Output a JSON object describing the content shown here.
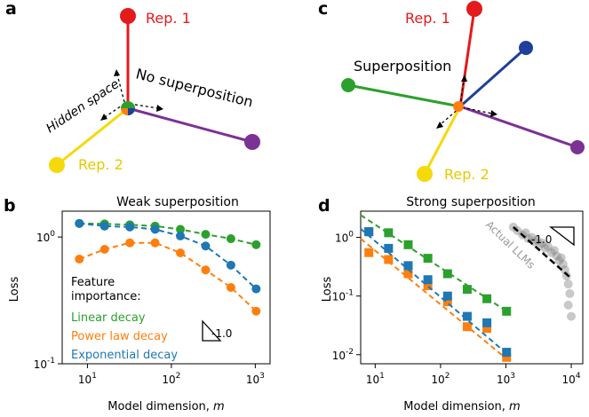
{
  "panels": {
    "a": {
      "letter": "a",
      "rep1": "Rep. 1",
      "rep2": "Rep. 2",
      "hidden_space": "Hidden space",
      "annotation": "No superposition",
      "colors": {
        "rep1": "#e41a1c",
        "rep2": "#ffdd00",
        "green": "#2ca02c",
        "purple": "#7b3294",
        "blue": "#1f3f9a"
      }
    },
    "c": {
      "letter": "c",
      "rep1": "Rep. 1",
      "rep2": "Rep. 2",
      "annotation": "Superposition"
    }
  },
  "chart_data": [
    {
      "panel": "b",
      "type": "line",
      "title": "Weak superposition",
      "xlabel": "Model dimension, m",
      "xlabel_main": "Model dimension, ",
      "xlabel_var": "m",
      "ylabel": "Loss",
      "xscale": "log",
      "yscale": "log",
      "xlim": [
        5,
        1500
      ],
      "ylim": [
        0.1,
        1.6
      ],
      "xticks": [
        {
          "v": 10,
          "base": "10",
          "exp": "1"
        },
        {
          "v": 100,
          "base": "10",
          "exp": "2"
        },
        {
          "v": 1000,
          "base": "10",
          "exp": "3"
        }
      ],
      "yticks": [
        {
          "v": 0.1,
          "base": "10",
          "exp": "-1"
        },
        {
          "v": 1,
          "base": "10",
          "exp": "0"
        }
      ],
      "legend_title_1": "Feature",
      "legend_title_2": "importance:",
      "slope_label": "-1.0",
      "x": [
        8,
        16,
        32,
        64,
        128,
        256,
        512,
        1024
      ],
      "series": [
        {
          "name": "Linear decay",
          "color": "#2ca02c",
          "values": [
            1.28,
            1.27,
            1.25,
            1.22,
            1.15,
            1.05,
            0.97,
            0.87
          ]
        },
        {
          "name": "Power law decay",
          "color": "#ff7f0e",
          "values": [
            0.67,
            0.8,
            0.9,
            0.9,
            0.75,
            0.55,
            0.4,
            0.26
          ]
        },
        {
          "name": "Exponential decay",
          "color": "#1f77b4",
          "values": [
            1.28,
            1.22,
            1.2,
            1.15,
            1.02,
            0.85,
            0.6,
            0.39
          ]
        }
      ]
    },
    {
      "panel": "d",
      "type": "scatter",
      "title": "Strong superposition",
      "xlabel": "Model dimension, m",
      "xlabel_main": "Model dimension, ",
      "xlabel_var": "m",
      "ylabel": "Loss",
      "xscale": "log",
      "yscale": "log",
      "xlim": [
        6,
        15000
      ],
      "ylim": [
        0.007,
        2.8
      ],
      "xticks": [
        {
          "v": 10,
          "base": "10",
          "exp": "1"
        },
        {
          "v": 100,
          "base": "10",
          "exp": "2"
        },
        {
          "v": 1000,
          "base": "10",
          "exp": "3"
        },
        {
          "v": 10000,
          "base": "10",
          "exp": "4"
        }
      ],
      "yticks": [
        {
          "v": 0.01,
          "base": "10",
          "exp": "-2"
        },
        {
          "v": 0.1,
          "base": "10",
          "exp": "-1"
        },
        {
          "v": 1,
          "base": "10",
          "exp": "0"
        }
      ],
      "slope_label": "-1.0",
      "llm_label": "Actual LLMs",
      "x": [
        8,
        16,
        32,
        64,
        128,
        256,
        512,
        1024
      ],
      "series": [
        {
          "name": "Linear decay",
          "color": "#2ca02c",
          "values": [
            1.25,
            1.2,
            0.75,
            0.44,
            0.24,
            0.13,
            0.09,
            0.055
          ],
          "fit": [
            [
              6,
              2.4
            ],
            [
              1024,
              0.055
            ]
          ]
        },
        {
          "name": "Power law decay",
          "color": "#ff7f0e",
          "values": [
            0.55,
            0.42,
            0.24,
            0.15,
            0.08,
            0.03,
            0.028,
            0.009
          ],
          "fit": [
            [
              6,
              0.95
            ],
            [
              1024,
              0.0085
            ]
          ]
        },
        {
          "name": "Exponential decay",
          "color": "#1f77b4",
          "values": [
            1.25,
            0.65,
            0.33,
            0.19,
            0.1,
            0.045,
            0.035,
            0.011
          ],
          "fit": [
            [
              6,
              1.4
            ],
            [
              1024,
              0.0105
            ]
          ]
        }
      ],
      "llm_points": [
        [
          1300,
          1.5
        ],
        [
          1500,
          1.3
        ],
        [
          1800,
          1.1
        ],
        [
          2000,
          1.2
        ],
        [
          2200,
          0.95
        ],
        [
          2500,
          1.0
        ],
        [
          2700,
          0.85
        ],
        [
          3000,
          0.9
        ],
        [
          3300,
          0.75
        ],
        [
          3600,
          0.8
        ],
        [
          4000,
          0.65
        ],
        [
          4400,
          0.7
        ],
        [
          5000,
          0.55
        ],
        [
          5500,
          0.6
        ],
        [
          6000,
          0.48
        ],
        [
          6500,
          0.4
        ],
        [
          7000,
          0.45
        ],
        [
          7500,
          0.35
        ],
        [
          8000,
          0.28
        ],
        [
          8500,
          0.22
        ],
        [
          9000,
          0.16
        ],
        [
          9500,
          0.11
        ],
        [
          9000,
          0.07
        ],
        [
          10000,
          0.045
        ]
      ],
      "llm_fit": [
        [
          1300,
          1.5
        ],
        [
          10000,
          0.2
        ]
      ]
    }
  ]
}
